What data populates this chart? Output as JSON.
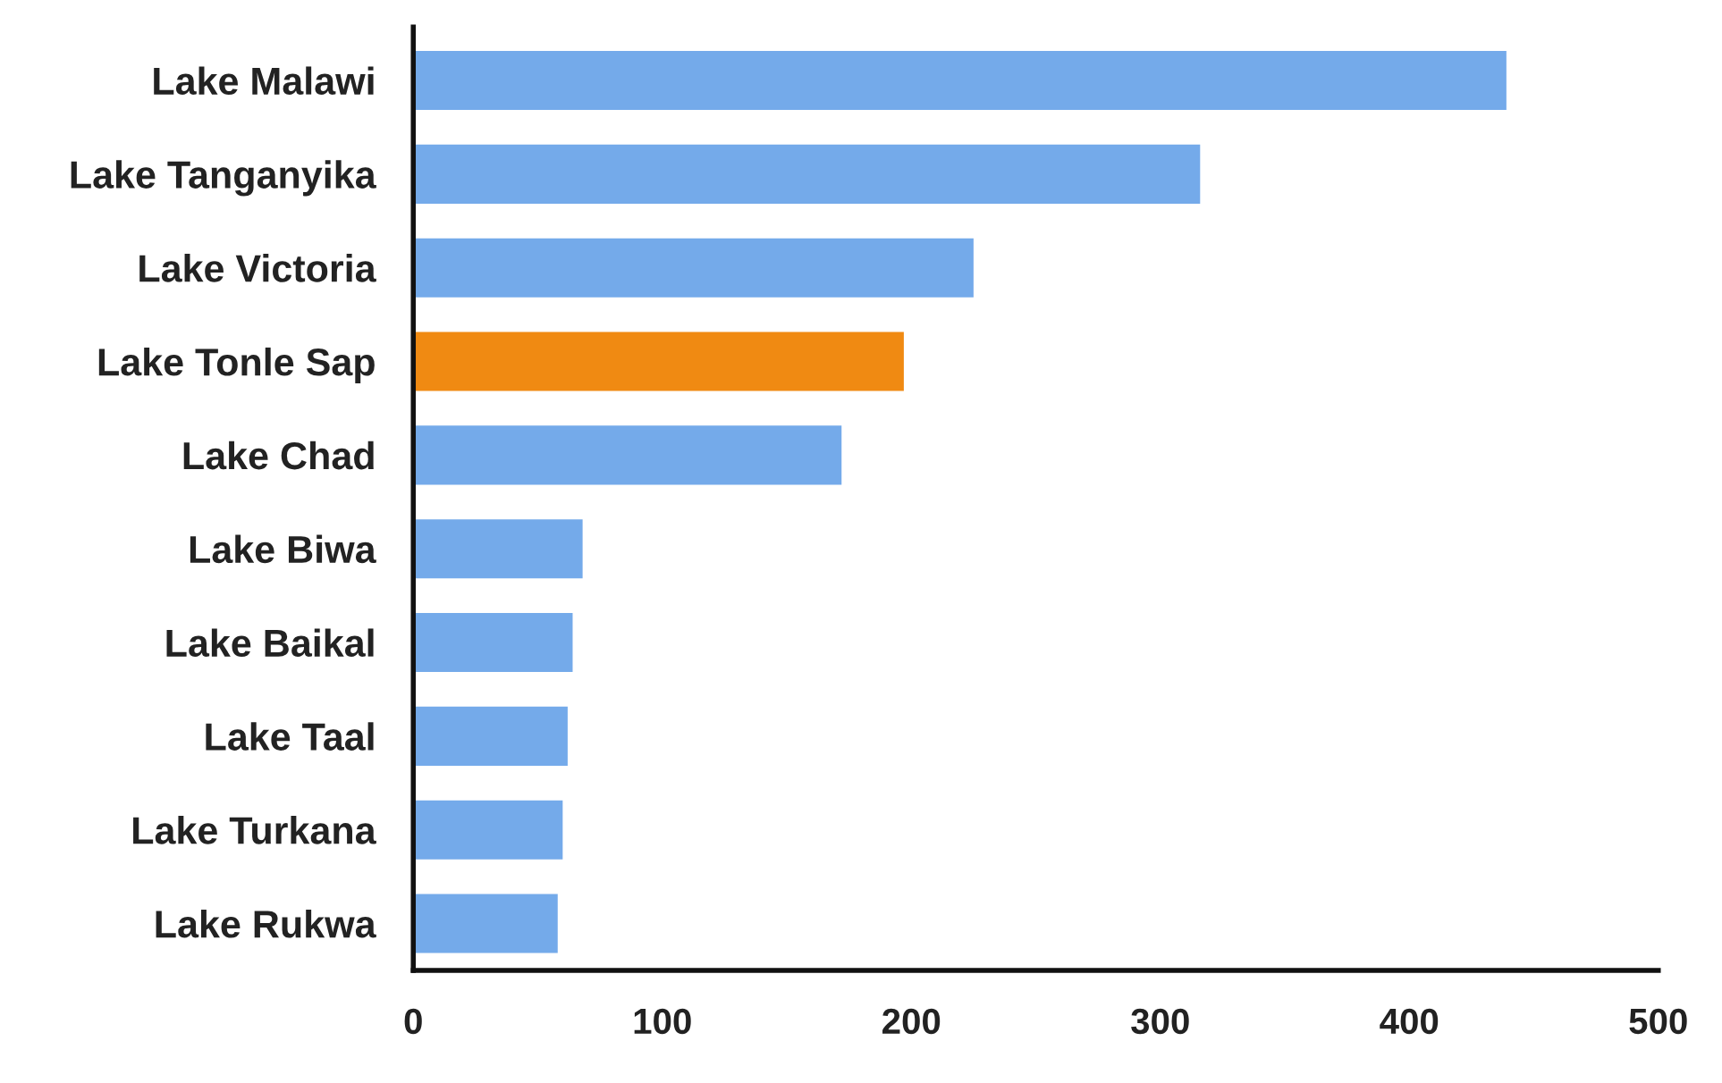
{
  "chart_data": {
    "type": "bar",
    "orientation": "horizontal",
    "categories": [
      "Lake Malawi",
      "Lake Tanganyika",
      "Lake Victoria",
      "Lake Tonle Sap",
      "Lake Chad",
      "Lake Biwa",
      "Lake Baikal",
      "Lake Taal",
      "Lake Turkana",
      "Lake Rukwa"
    ],
    "values": [
      439,
      316,
      225,
      197,
      172,
      68,
      64,
      62,
      60,
      58
    ],
    "colors": [
      "#74aaea",
      "#74aaea",
      "#74aaea",
      "#f08a12",
      "#74aaea",
      "#74aaea",
      "#74aaea",
      "#74aaea",
      "#74aaea",
      "#74aaea"
    ],
    "xlim": [
      0,
      500
    ],
    "xticks": [
      0,
      100,
      200,
      300,
      400,
      500
    ]
  }
}
